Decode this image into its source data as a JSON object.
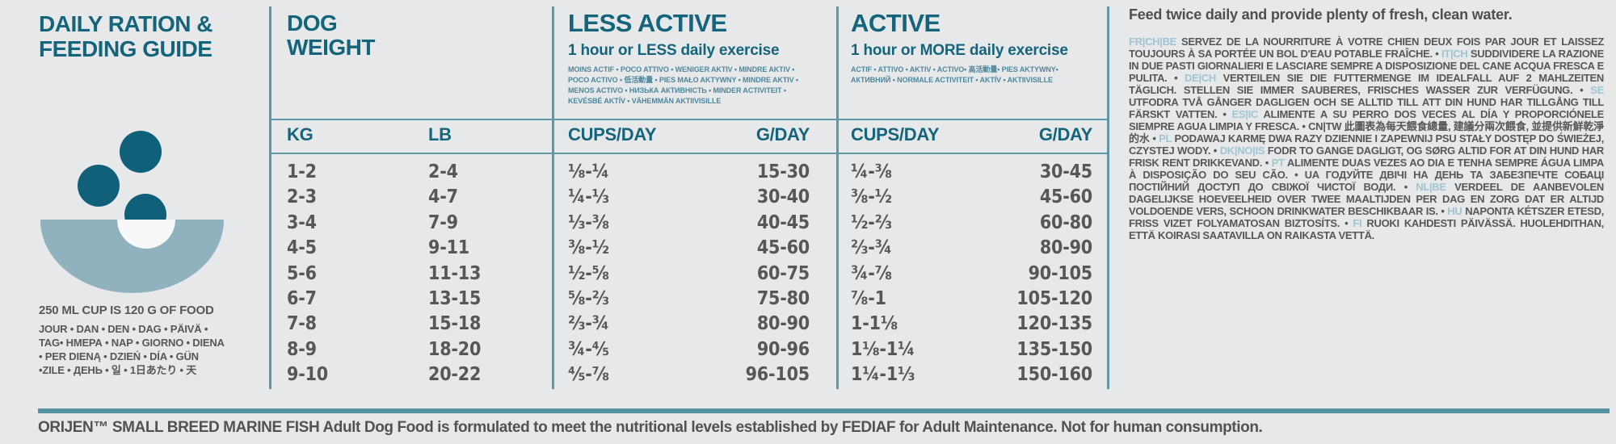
{
  "colors": {
    "background": "#e7e8e9",
    "heading_teal": "#14647b",
    "body_gray": "#565759",
    "divider_teal": "#5e97a8",
    "thick_bar_teal": "#5794a3",
    "bowl_light": "#8fb2be",
    "kibble_dark": "#10607a",
    "translation_teal": "#4e879c",
    "language_code_blue": "#9fc4d1"
  },
  "left_panel": {
    "title": "DAILY RATION &\nFEEDING GUIDE",
    "cup_note": "250 ML CUP IS 120 G OF FOOD",
    "day_translations": "JOUR • DAN • DEN • DAG • PÄIVÄ •\nTAG• ΗΜΕΡΑ • NAP • GIORNO • DIENA\n• PER DIENĄ • DZIEŃ • DÍA • GÜN\n•ZILE • ДЕНЬ • 일 • 1日あたり • 天"
  },
  "table": {
    "dog_weight": {
      "title": "DOG\nWEIGHT",
      "col_kg": "KG",
      "col_lb": "LB"
    },
    "less_active": {
      "title": "LESS ACTIVE",
      "subtitle": "1 hour or LESS daily exercise",
      "translations": "MOINS ACTIF • POCO ATTIVO • WENIGER AKTIV • MINDRE AKTIV • POCO ACTIVO • 低活動量 • PIES MAŁO AKTYWNY • MINDRE AKTIV • MENOS ACTIVO • НИЗЬКА АКТИВНІСТЬ • MINDER ACTIVITEIT • KEVÉSBÉ AKTÍV • VÄHEMMÄN AKTIIVISILLE",
      "col_cups": "CUPS/DAY",
      "col_g": "G/DAY"
    },
    "active": {
      "title": "ACTIVE",
      "subtitle": "1 hour or MORE daily exercise",
      "translations": "ACTIF • ATTIVO • AKTIV • ACTIVO• 高活動量• PIES AKTYWNY• АКТИВНИЙ • NORMALE ACTIVITEIT • AKTÍV • AKTIIVISILLE",
      "col_cups": "CUPS/DAY",
      "col_g": "G/DAY"
    },
    "rows": [
      {
        "kg": "1-2",
        "lb": "2-4",
        "la_cups": "⅛-¼",
        "la_g": "15-30",
        "a_cups": "¼-⅜",
        "a_g": "30-45"
      },
      {
        "kg": "2-3",
        "lb": "4-7",
        "la_cups": "¼-⅓",
        "la_g": "30-40",
        "a_cups": "⅜-½",
        "a_g": "45-60"
      },
      {
        "kg": "3-4",
        "lb": "7-9",
        "la_cups": "⅓-⅜",
        "la_g": "40-45",
        "a_cups": "½-⅔",
        "a_g": "60-80"
      },
      {
        "kg": "4-5",
        "lb": "9-11",
        "la_cups": "⅜-½",
        "la_g": "45-60",
        "a_cups": "⅔-¾",
        "a_g": "80-90"
      },
      {
        "kg": "5-6",
        "lb": "11-13",
        "la_cups": "½-⅝",
        "la_g": "60-75",
        "a_cups": "¾-⅞",
        "a_g": "90-105"
      },
      {
        "kg": "6-7",
        "lb": "13-15",
        "la_cups": "⅝-⅔",
        "la_g": "75-80",
        "a_cups": "⅞-1",
        "a_g": "105-120"
      },
      {
        "kg": "7-8",
        "lb": "15-18",
        "la_cups": "⅔-¾",
        "la_g": "80-90",
        "a_cups": "1-1⅛",
        "a_g": "120-135"
      },
      {
        "kg": "8-9",
        "lb": "18-20",
        "la_cups": "¾-⅘",
        "la_g": "90-96",
        "a_cups": "1⅛-1¼",
        "a_g": "135-150"
      },
      {
        "kg": "9-10",
        "lb": "20-22",
        "la_cups": "⅘-⅞",
        "la_g": "96-105",
        "a_cups": "1¼-1⅓",
        "a_g": "150-160"
      }
    ]
  },
  "right_panel": {
    "headline": "Feed twice daily and provide plenty of fresh, clean water.",
    "segments": [
      {
        "code": "FR|CH|BE",
        "text": "SERVEZ DE LA NOURRITURE À VOTRE CHIEN DEUX FOIS PAR JOUR ET LAISSEZ TOUJOURS À SA PORTÉE UN BOL D'EAU POTABLE FRAÎCHE."
      },
      {
        "code": "IT|CH",
        "text": "SUDDIVIDERE LA RAZIONE IN DUE PASTI GIORNALIERI E LASCIARE SEMPRE A DISPOSIZIONE DEL CANE ACQUA FRESCA E PULITA."
      },
      {
        "code": "DE|CH",
        "text": "VERTEILEN SIE DIE FUTTERMENGE IM IDEALFALL AUF 2 MAHLZEITEN TÄGLICH. STELLEN SIE IMMER SAUBERES, FRISCHES WASSER ZUR VERFÜGUNG."
      },
      {
        "code": "SE",
        "text": "UTFODRA TVÅ GÅNGER DAGLIGEN OCH SE ALLTID TILL ATT DIN HUND HAR TILLGÅNG TILL FÄRSKT VATTEN."
      },
      {
        "code": "ES|IC",
        "text": "ALIMENTE A SU PERRO DOS VECES AL DÍA Y PROPORCIÓNELE SIEMPRE AGUA LIMPIA Y FRESCA."
      },
      {
        "code": "",
        "text": "CN|TW 此圖表為每天餵食總量, 建議分兩次餵食, 並提供新鮮乾淨的水"
      },
      {
        "code": "PL",
        "text": "PODAWAJ KARMĘ DWA RAZY DZIENNIE I ZAPEWNIJ PSU STAŁY DOSTĘP DO ŚWIEŻEJ, CZYSTEJ WODY."
      },
      {
        "code": "DK|NO|IS",
        "text": "FODR TO GANGE DAGLIGT, OG SØRG ALTID FOR AT DIN HUND HAR FRISK RENT DRIKKEVAND."
      },
      {
        "code": "PT",
        "text": "ALIMENTE DUAS VEZES AO DIA E TENHA SEMPRE ÁGUA LIMPA À DISPOSIÇÃO DO SEU CÃO."
      },
      {
        "code": "",
        "text": "UA ГОДУЙТЕ ДВІЧІ НА ДЕНЬ ТА ЗАБЕЗПЕЧТЕ СОБАЦІ ПОСТІЙНИЙ ДОСТУП ДО СВІЖОЇ ЧИСТОЇ ВОДИ."
      },
      {
        "code": "NL|BE",
        "text": "VERDEEL DE AANBEVOLEN DAGELIJKSE HOEVEELHEID OVER TWEE MAALTIJDEN PER DAG EN ZORG DAT ER ALTIJD VOLDOENDE VERS, SCHOON DRINKWATER BESCHIKBAAR IS."
      },
      {
        "code": "HU",
        "text": "NAPONTA KÉTSZER ETESD, FRISS VIZET FOLYAMATOSAN BIZTOSÍTS."
      },
      {
        "code": "FI",
        "text": "RUOKI KAHDESTI PÄIVÄSSÄ. HUOLEHDITHAN, ETTÄ KOIRASI SAATAVILLA ON RAIKASTA VETTÄ."
      }
    ]
  },
  "footer": {
    "disclaimer": "ORIJEN™ SMALL BREED MARINE FISH Adult Dog Food is formulated to meet the nutritional levels established by FEDIAF for Adult Maintenance. Not for human consumption."
  }
}
